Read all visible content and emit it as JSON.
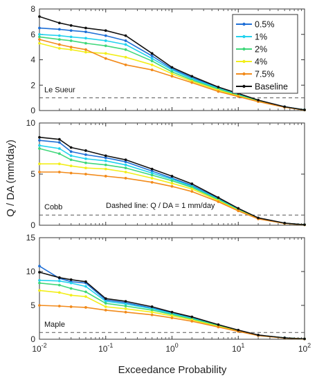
{
  "figure": {
    "ylabel": "Q / DA (mm/day)",
    "xlabel": "Exceedance Probability",
    "annotation": "Dashed line: Q / DA = 1 mm/day"
  },
  "colors": {
    "0.5%": "#1f6fd6",
    "1%": "#22d2ee",
    "2%": "#3fd77a",
    "4%": "#f2ee1a",
    "7.5%": "#f28a1a",
    "Baseline": "#111111"
  },
  "chart_data": [
    {
      "type": "line",
      "panel": "Le Sueur",
      "label": "Le Sueur",
      "xscale": "log",
      "xlim": [
        0.01,
        100
      ],
      "ylim": [
        0,
        8
      ],
      "yticks": [
        0,
        2,
        4,
        6,
        8
      ],
      "reference_line_y": 1,
      "legend": "top-right",
      "x": [
        0.01,
        0.02,
        0.03,
        0.05,
        0.1,
        0.2,
        0.5,
        1,
        2,
        5,
        10,
        20,
        50,
        100
      ],
      "series": [
        {
          "name": "0.5%",
          "values": [
            6.5,
            6.4,
            6.3,
            6.2,
            5.9,
            5.5,
            4.3,
            3.3,
            2.6,
            1.8,
            1.3,
            0.8,
            0.3,
            0.05
          ]
        },
        {
          "name": "1%",
          "values": [
            6.0,
            5.9,
            5.8,
            5.7,
            5.5,
            5.2,
            4.1,
            3.2,
            2.5,
            1.75,
            1.25,
            0.78,
            0.3,
            0.05
          ]
        },
        {
          "name": "2%",
          "values": [
            5.8,
            5.6,
            5.5,
            5.3,
            5.1,
            4.8,
            3.9,
            3.05,
            2.4,
            1.7,
            1.2,
            0.75,
            0.28,
            0.05
          ]
        },
        {
          "name": "4%",
          "values": [
            5.3,
            4.9,
            4.8,
            4.6,
            4.5,
            4.2,
            3.6,
            2.9,
            2.3,
            1.6,
            1.15,
            0.72,
            0.27,
            0.04
          ]
        },
        {
          "name": "7.5%",
          "values": [
            5.6,
            5.2,
            5.0,
            4.8,
            4.1,
            3.6,
            3.2,
            2.7,
            2.2,
            1.5,
            1.1,
            0.7,
            0.26,
            0.04
          ]
        },
        {
          "name": "Baseline",
          "values": [
            7.4,
            6.9,
            6.7,
            6.5,
            6.3,
            5.9,
            4.5,
            3.4,
            2.7,
            1.85,
            1.35,
            0.82,
            0.3,
            0.05
          ]
        }
      ]
    },
    {
      "type": "line",
      "panel": "Cobb",
      "label": "Cobb",
      "xscale": "log",
      "xlim": [
        0.01,
        100
      ],
      "ylim": [
        0,
        10
      ],
      "yticks": [
        0,
        5,
        10
      ],
      "reference_line_y": 1,
      "x": [
        0.01,
        0.02,
        0.03,
        0.05,
        0.1,
        0.2,
        0.5,
        1,
        2,
        5,
        10,
        20,
        50,
        100
      ],
      "series": [
        {
          "name": "0.5%",
          "values": [
            8.3,
            8.1,
            7.2,
            6.9,
            6.6,
            6.2,
            5.3,
            4.6,
            3.9,
            2.6,
            1.6,
            0.7,
            0.2,
            0.05
          ]
        },
        {
          "name": "1%",
          "values": [
            7.8,
            7.5,
            6.8,
            6.5,
            6.3,
            5.9,
            5.1,
            4.5,
            3.8,
            2.55,
            1.55,
            0.68,
            0.2,
            0.05
          ]
        },
        {
          "name": "2%",
          "values": [
            7.5,
            7.0,
            6.4,
            6.1,
            5.9,
            5.6,
            4.9,
            4.35,
            3.7,
            2.5,
            1.5,
            0.66,
            0.19,
            0.05
          ]
        },
        {
          "name": "4%",
          "values": [
            6.0,
            6.0,
            5.8,
            5.6,
            5.5,
            5.2,
            4.6,
            4.1,
            3.55,
            2.4,
            1.45,
            0.64,
            0.18,
            0.04
          ]
        },
        {
          "name": "7.5%",
          "values": [
            5.2,
            5.2,
            5.1,
            5.0,
            4.8,
            4.6,
            4.2,
            3.8,
            3.3,
            2.3,
            1.4,
            0.62,
            0.18,
            0.04
          ]
        },
        {
          "name": "Baseline",
          "values": [
            8.6,
            8.4,
            7.6,
            7.3,
            6.8,
            6.4,
            5.5,
            4.8,
            4.05,
            2.7,
            1.65,
            0.72,
            0.21,
            0.05
          ]
        }
      ]
    },
    {
      "type": "line",
      "panel": "Maple",
      "label": "Maple",
      "xscale": "log",
      "xlim": [
        0.01,
        100
      ],
      "ylim": [
        0,
        15
      ],
      "yticks": [
        0,
        5,
        10,
        15
      ],
      "reference_line_y": 1,
      "x": [
        0.01,
        0.02,
        0.03,
        0.05,
        0.1,
        0.2,
        0.5,
        1,
        2,
        5,
        10,
        20,
        50,
        100
      ],
      "series": [
        {
          "name": "0.5%",
          "values": [
            10.8,
            9.0,
            8.5,
            8.3,
            5.8,
            5.4,
            4.6,
            3.9,
            3.2,
            2.1,
            1.3,
            0.6,
            0.2,
            0.05
          ]
        },
        {
          "name": "1%",
          "values": [
            8.7,
            8.6,
            8.3,
            7.8,
            5.6,
            5.2,
            4.5,
            3.8,
            3.1,
            2.05,
            1.28,
            0.59,
            0.2,
            0.05
          ]
        },
        {
          "name": "2%",
          "values": [
            8.3,
            8.0,
            7.5,
            7.0,
            5.3,
            4.9,
            4.3,
            3.65,
            3.0,
            2.0,
            1.25,
            0.58,
            0.19,
            0.05
          ]
        },
        {
          "name": "4%",
          "values": [
            7.2,
            6.9,
            6.5,
            6.3,
            4.8,
            4.5,
            4.0,
            3.45,
            2.85,
            1.9,
            1.2,
            0.56,
            0.18,
            0.04
          ]
        },
        {
          "name": "7.5%",
          "values": [
            5.0,
            4.9,
            4.8,
            4.7,
            4.3,
            4.0,
            3.6,
            3.15,
            2.65,
            1.8,
            1.15,
            0.54,
            0.17,
            0.04
          ]
        },
        {
          "name": "Baseline",
          "values": [
            9.9,
            9.1,
            8.8,
            8.5,
            6.0,
            5.6,
            4.8,
            4.0,
            3.3,
            2.15,
            1.35,
            0.62,
            0.2,
            0.05
          ]
        }
      ]
    }
  ]
}
